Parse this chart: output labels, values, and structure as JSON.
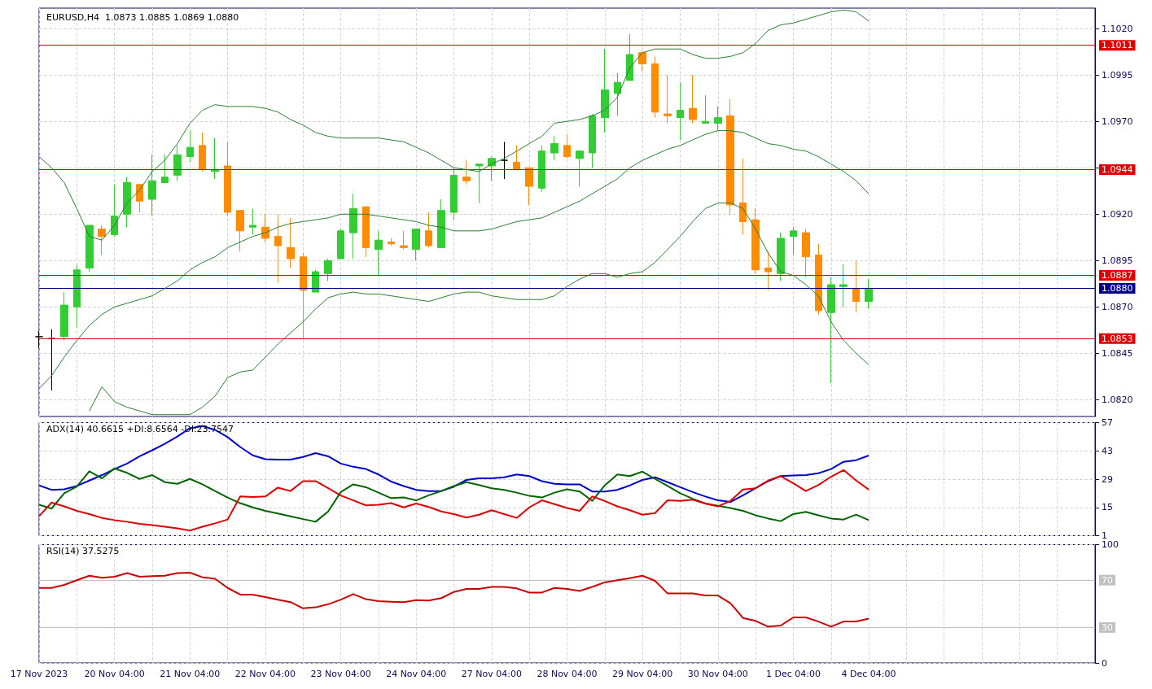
{
  "chart_data": [
    {
      "type": "candlestick",
      "title": "EURUSD,H4  1.0873 1.0885 1.0869 1.0880",
      "tick_labels": "y",
      "grid": true,
      "categories": [
        null,
        null,
        null,
        null,
        null,
        null,
        null,
        null,
        null,
        null,
        null,
        null,
        null,
        null,
        null,
        null,
        null,
        null,
        null,
        null,
        null,
        null,
        null,
        null,
        null,
        null,
        null,
        null,
        null,
        null,
        null,
        null,
        null,
        null,
        null,
        null,
        null,
        null,
        null,
        null,
        null,
        null,
        null,
        null,
        null,
        null,
        null,
        null,
        null,
        null,
        null,
        null,
        null,
        null,
        null,
        null,
        null,
        null,
        null,
        null,
        null,
        null,
        null,
        null,
        null,
        null,
        null
      ],
      "ylim": [
        1.0811,
        1.1031
      ],
      "yticks": [
        {
          "value": 1.082,
          "label": "1.0820"
        },
        {
          "value": 1.0845,
          "label": "1.0845"
        },
        {
          "value": 1.087,
          "label": "1.0870"
        },
        {
          "value": 1.0895,
          "label": "1.0895"
        },
        {
          "value": 1.092,
          "label": "1.0920"
        },
        {
          "value": 1.0945,
          "label": null
        },
        {
          "value": 1.097,
          "label": "1.0970"
        },
        {
          "value": 1.0995,
          "label": "1.0995"
        },
        {
          "value": 1.102,
          "label": "1.1020"
        }
      ],
      "ohlc": [
        [
          1.0854,
          1.0857,
          1.0848,
          1.0854
        ],
        [
          1.0853,
          1.0858,
          1.0825,
          1.0853
        ],
        [
          1.0854,
          1.0878,
          1.0852,
          1.0871
        ],
        [
          1.087,
          1.0893,
          1.0859,
          1.089
        ],
        [
          1.0891,
          1.0914,
          1.0889,
          1.0914
        ],
        [
          1.0912,
          1.0914,
          1.0898,
          1.0908
        ],
        [
          1.0909,
          1.0936,
          1.0908,
          1.0919
        ],
        [
          1.092,
          1.094,
          1.0913,
          1.0937
        ],
        [
          1.0936,
          1.0936,
          1.0921,
          1.0927
        ],
        [
          1.0928,
          1.0952,
          1.0919,
          1.0938
        ],
        [
          1.0937,
          1.0952,
          1.0937,
          1.094
        ],
        [
          1.0941,
          1.0957,
          1.0938,
          1.0952
        ],
        [
          1.0951,
          1.0965,
          1.0948,
          1.0956
        ],
        [
          1.0957,
          1.0964,
          1.0943,
          1.0944
        ],
        [
          1.0943,
          1.0961,
          1.0939,
          1.0944
        ],
        [
          1.0946,
          1.0959,
          1.0919,
          1.0921
        ],
        [
          1.0922,
          1.0922,
          1.09,
          1.0911
        ],
        [
          1.0913,
          1.0923,
          1.0909,
          1.0914
        ],
        [
          1.0913,
          1.092,
          1.0905,
          1.0907
        ],
        [
          1.0908,
          1.092,
          1.0883,
          1.0903
        ],
        [
          1.0902,
          1.0918,
          1.0891,
          1.0896
        ],
        [
          1.0897,
          1.0899,
          1.0853,
          1.0879
        ],
        [
          1.0878,
          1.089,
          1.0878,
          1.0889
        ],
        [
          1.0888,
          1.0896,
          1.0884,
          1.0895
        ],
        [
          1.0896,
          1.0912,
          1.0896,
          1.0911
        ],
        [
          1.091,
          1.0931,
          1.0896,
          1.0923
        ],
        [
          1.0924,
          1.0924,
          1.0897,
          1.0902
        ],
        [
          1.0901,
          1.0911,
          1.0887,
          1.0906
        ],
        [
          1.0905,
          1.0907,
          1.0903,
          1.0904
        ],
        [
          1.0903,
          1.0911,
          1.0901,
          1.0902
        ],
        [
          1.0901,
          1.0912,
          1.0895,
          1.0912
        ],
        [
          1.0911,
          1.0921,
          1.0902,
          1.0903
        ],
        [
          1.0902,
          1.0928,
          1.0902,
          1.0922
        ],
        [
          1.0921,
          1.0945,
          1.0917,
          1.0941
        ],
        [
          1.094,
          1.0949,
          1.0936,
          1.0938
        ],
        [
          1.0946,
          1.0947,
          1.0926,
          1.0947
        ],
        [
          1.0946,
          1.0951,
          1.0938,
          1.095
        ],
        [
          1.0949,
          1.0959,
          1.0939,
          1.0949
        ],
        [
          1.0948,
          1.0957,
          1.0944,
          1.0944
        ],
        [
          1.0945,
          1.0945,
          1.0925,
          1.0935
        ],
        [
          1.0934,
          1.0957,
          1.0932,
          1.0954
        ],
        [
          1.0953,
          1.0962,
          1.0949,
          1.0958
        ],
        [
          1.0957,
          1.0963,
          1.095,
          1.0951
        ],
        [
          1.095,
          1.0954,
          1.0935,
          1.0954
        ],
        [
          1.0953,
          1.0974,
          1.0945,
          1.0973
        ],
        [
          1.0972,
          1.1009,
          1.0964,
          1.0987
        ],
        [
          1.0985,
          1.0996,
          1.0973,
          1.0991
        ],
        [
          1.0992,
          1.1017,
          1.0992,
          1.1006
        ],
        [
          1.1007,
          1.1008,
          1.0997,
          1.1001
        ],
        [
          1.1001,
          1.1005,
          1.0972,
          1.0975
        ],
        [
          1.0974,
          1.0995,
          1.0969,
          1.0973
        ],
        [
          1.0972,
          1.0991,
          1.096,
          1.0976
        ],
        [
          1.0977,
          1.0995,
          1.0969,
          1.0971
        ],
        [
          1.0969,
          1.0984,
          1.0969,
          1.097
        ],
        [
          1.0969,
          1.0978,
          1.0965,
          1.0972
        ],
        [
          1.0973,
          1.0982,
          1.092,
          1.0925
        ],
        [
          1.0926,
          1.095,
          1.0909,
          1.0916
        ],
        [
          1.0917,
          1.0923,
          1.0888,
          1.089
        ],
        [
          1.0891,
          1.09,
          1.0879,
          1.0889
        ],
        [
          1.0888,
          1.091,
          1.0884,
          1.0907
        ],
        [
          1.0908,
          1.0913,
          1.0898,
          1.0911
        ],
        [
          1.091,
          1.0912,
          1.0886,
          1.0897
        ],
        [
          1.0898,
          1.0904,
          1.0866,
          1.0868
        ],
        [
          1.0867,
          1.0886,
          1.0829,
          1.0882
        ],
        [
          1.0881,
          1.0893,
          1.087,
          1.0882
        ],
        [
          1.088,
          1.0895,
          1.0867,
          1.0873
        ],
        [
          1.0873,
          1.0885,
          1.0869,
          1.088
        ]
      ],
      "colors": [
        "#000000",
        "#000000",
        "#32cd32",
        "#32cd32",
        "#32cd32",
        "#ff8c00",
        "#32cd32",
        "#32cd32",
        "#ff8c00",
        "#32cd32",
        "#32cd32",
        "#32cd32",
        "#32cd32",
        "#ff8c00",
        "#32cd32",
        "#ff8c00",
        "#ff8c00",
        "#32cd32",
        "#ff8c00",
        "#ff8c00",
        "#ff8c00",
        "#ff8c00",
        "#32cd32",
        "#32cd32",
        "#32cd32",
        "#32cd32",
        "#ff8c00",
        "#32cd32",
        "#ff8c00",
        "#ff8c00",
        "#32cd32",
        "#ff8c00",
        "#32cd32",
        "#32cd32",
        "#ff8c00",
        "#32cd32",
        "#32cd32",
        "#000000",
        "#ff8c00",
        "#ff8c00",
        "#32cd32",
        "#32cd32",
        "#ff8c00",
        "#32cd32",
        "#32cd32",
        "#32cd32",
        "#32cd32",
        "#32cd32",
        "#ff8c00",
        "#ff8c00",
        "#ff8c00",
        "#32cd32",
        "#ff8c00",
        "#32cd32",
        "#32cd32",
        "#ff8c00",
        "#ff8c00",
        "#ff8c00",
        "#ff8c00",
        "#32cd32",
        "#32cd32",
        "#ff8c00",
        "#ff8c00",
        "#32cd32",
        "#32cd32",
        "#ff8c00",
        "#32cd32"
      ],
      "series": [
        {
          "type": "line",
          "color": "#2e7d32",
          "values": [
            1.0951,
            1.0945,
            1.0937,
            1.0923,
            1.0908,
            1.0906,
            1.0914,
            1.0926,
            1.0933,
            1.0943,
            1.0949,
            1.0958,
            1.0969,
            1.0976,
            1.0979,
            1.0978,
            1.0978,
            1.0978,
            1.0977,
            1.0975,
            1.0971,
            1.0968,
            1.0964,
            1.0962,
            1.0961,
            1.0961,
            1.0961,
            1.0961,
            1.096,
            1.0959,
            1.0956,
            1.0953,
            1.0949,
            1.0945,
            1.0944,
            1.0943,
            1.0947,
            1.095,
            1.0954,
            1.0958,
            1.0962,
            1.0969,
            1.097,
            1.0971,
            1.0973,
            1.0976,
            1.0983,
            1.0999,
            1.1007,
            1.1009,
            1.1009,
            1.1009,
            1.1006,
            1.1004,
            1.1004,
            1.1005,
            1.1007,
            1.1012,
            1.1019,
            1.1022,
            1.1023,
            1.1025,
            1.1027,
            1.1029,
            1.103,
            1.1029,
            1.1024
          ]
        },
        {
          "type": "line",
          "color": "#2e7d32",
          "values": [
            1.0826,
            1.0833,
            1.0843,
            1.0852,
            1.086,
            1.0866,
            1.087,
            1.0872,
            1.0874,
            1.0876,
            1.088,
            1.0884,
            1.089,
            1.0894,
            1.0897,
            1.0902,
            1.0905,
            1.0908,
            1.091,
            1.0913,
            1.0915,
            1.0916,
            1.0917,
            1.0918,
            1.092,
            1.092,
            1.092,
            1.0919,
            1.0918,
            1.0917,
            1.0916,
            1.0914,
            1.0913,
            1.0911,
            1.0911,
            1.0911,
            1.0912,
            1.0914,
            1.0916,
            1.0917,
            1.0918,
            1.0921,
            1.0924,
            1.0927,
            1.0931,
            1.0935,
            1.0939,
            1.0945,
            1.0949,
            1.0952,
            1.0955,
            1.0957,
            1.096,
            1.0963,
            1.0965,
            1.0965,
            1.0964,
            1.0961,
            1.0958,
            1.0957,
            1.0955,
            1.0954,
            1.0951,
            1.0947,
            1.0943,
            1.0938,
            1.0931
          ]
        },
        {
          "type": "line",
          "color": "#2e7d32",
          "values": [
            null,
            null,
            null,
            null,
            1.0814,
            1.0827,
            1.0819,
            1.0816,
            1.0814,
            1.0812,
            1.0812,
            1.0812,
            1.0812,
            1.0816,
            1.0822,
            1.0832,
            1.0835,
            1.0836,
            1.0843,
            1.085,
            1.0856,
            1.0862,
            1.0869,
            1.0875,
            1.0877,
            1.0878,
            1.0877,
            1.0877,
            1.0876,
            1.0875,
            1.0874,
            1.0873,
            1.0875,
            1.0877,
            1.0878,
            1.0878,
            1.0876,
            1.0875,
            1.0874,
            1.0874,
            1.0874,
            1.0876,
            1.0881,
            1.0885,
            1.0888,
            1.0888,
            1.0886,
            1.0888,
            1.0889,
            1.0894,
            1.0901,
            1.0908,
            1.0916,
            1.0923,
            1.0926,
            1.0926,
            1.0923,
            1.0912,
            1.0899,
            1.0889,
            1.0887,
            1.0882,
            1.0876,
            1.0862,
            1.0852,
            1.0845,
            1.0839
          ]
        }
      ],
      "ref_lines": [
        {
          "axis": "y",
          "value": 1.1011,
          "label": "1.1011",
          "color": "#e00000"
        },
        {
          "axis": "y",
          "value": 1.0944,
          "label": "1.0944",
          "color": "#e00000"
        },
        {
          "axis": "y",
          "value": 1.0887,
          "label": "1.0887",
          "color": "#e00000"
        },
        {
          "axis": "y",
          "value": 1.088,
          "label": "1.0880",
          "color": "#000080"
        },
        {
          "axis": "y",
          "value": 1.0853,
          "label": "1.0853",
          "color": "#e00000"
        }
      ]
    },
    {
      "type": "line",
      "title": "ADX(14) 40.6615 +DI:8.6564 -DI:23.7547",
      "tick_labels": "y",
      "grid": true,
      "categories": [
        null,
        null,
        null,
        null,
        null,
        null,
        null,
        null,
        null,
        null,
        null,
        null,
        null,
        null,
        null,
        null,
        null,
        null,
        null,
        null,
        null,
        null,
        null,
        null,
        null,
        null,
        null,
        null,
        null,
        null,
        null,
        null,
        null,
        null,
        null,
        null,
        null,
        null,
        null,
        null,
        null,
        null,
        null,
        null,
        null,
        null,
        null,
        null,
        null,
        null,
        null,
        null,
        null,
        null,
        null,
        null,
        null,
        null,
        null,
        null,
        null,
        null,
        null,
        null,
        null,
        null,
        null
      ],
      "ylim": [
        1,
        57
      ],
      "yticks": [
        1,
        15,
        29,
        43,
        57
      ],
      "series": [
        {
          "color": "#0000cd",
          "values": [
            25.9,
            23.7,
            24.0,
            25.6,
            28.3,
            31.0,
            34.0,
            36.7,
            40.3,
            43.3,
            46.5,
            50.1,
            54.2,
            55.3,
            53.4,
            49.8,
            44.9,
            40.8,
            38.9,
            38.7,
            38.7,
            40.0,
            41.9,
            40.3,
            36.7,
            35.1,
            34.0,
            31.3,
            27.8,
            25.6,
            23.7,
            23.1,
            23.1,
            25.3,
            28.6,
            29.4,
            29.4,
            29.9,
            31.3,
            30.5,
            28.0,
            26.7,
            26.4,
            26.4,
            22.9,
            22.9,
            23.7,
            25.9,
            28.6,
            29.9,
            27.5,
            25.0,
            22.6,
            20.4,
            18.5,
            17.7,
            21.0,
            24.5,
            28.0,
            30.5,
            30.8,
            31.0,
            31.9,
            34.0,
            37.6,
            38.4,
            40.7
          ]
        },
        {
          "color": "#006400",
          "values": [
            16.3,
            14.4,
            22.0,
            25.3,
            32.9,
            29.4,
            34.3,
            32.1,
            29.1,
            31.0,
            27.5,
            26.7,
            29.1,
            26.4,
            23.1,
            19.9,
            17.1,
            15.0,
            13.3,
            12.0,
            10.6,
            9.2,
            7.9,
            13.0,
            22.6,
            26.4,
            25.0,
            22.3,
            19.6,
            19.9,
            18.5,
            21.0,
            23.1,
            25.6,
            27.5,
            26.1,
            24.5,
            23.7,
            22.3,
            20.7,
            19.9,
            22.3,
            24.0,
            22.9,
            18.2,
            25.9,
            31.3,
            30.5,
            32.7,
            29.1,
            25.6,
            22.0,
            19.3,
            16.9,
            15.8,
            14.7,
            13.3,
            11.1,
            9.5,
            8.2,
            11.7,
            12.8,
            11.1,
            9.5,
            9.0,
            11.4,
            8.7
          ]
        },
        {
          "color": "#dc0000",
          "values": [
            10.6,
            17.4,
            15.5,
            13.3,
            11.7,
            9.8,
            8.7,
            7.9,
            6.8,
            6.2,
            5.4,
            4.6,
            3.5,
            5.4,
            7.1,
            9.0,
            20.4,
            20.1,
            20.4,
            24.8,
            23.1,
            28.0,
            28.0,
            24.5,
            20.9,
            18.5,
            16.0,
            16.3,
            17.1,
            15.0,
            16.9,
            15.2,
            13.0,
            11.7,
            10.0,
            11.4,
            13.6,
            11.7,
            9.8,
            15.0,
            18.5,
            16.6,
            14.7,
            13.3,
            20.4,
            18.2,
            15.5,
            13.6,
            11.4,
            12.2,
            18.5,
            18.2,
            18.8,
            16.9,
            15.5,
            18.2,
            23.9,
            24.5,
            28.3,
            30.5,
            26.9,
            23.1,
            26.1,
            30.2,
            33.5,
            28.3,
            23.8
          ]
        }
      ]
    },
    {
      "type": "line",
      "title": "RSI(14) 37.5275",
      "grid": true,
      "categories": [
        "17 Nov 2023",
        null,
        null,
        null,
        null,
        null,
        "20 Nov 04:00",
        null,
        null,
        null,
        null,
        null,
        "21 Nov 04:00",
        null,
        null,
        null,
        null,
        null,
        "22 Nov 04:00",
        null,
        null,
        null,
        null,
        null,
        "23 Nov 04:00",
        null,
        null,
        null,
        null,
        null,
        "24 Nov 04:00",
        null,
        null,
        null,
        null,
        null,
        "27 Nov 04:00",
        null,
        null,
        null,
        null,
        null,
        "28 Nov 04:00",
        null,
        null,
        null,
        null,
        null,
        "29 Nov 04:00",
        null,
        null,
        null,
        null,
        null,
        "30 Nov 04:00",
        null,
        null,
        null,
        null,
        null,
        "1 Dec 04:00",
        null,
        null,
        null,
        null,
        null,
        "4 Dec 04:00"
      ],
      "ylim": [
        0,
        100
      ],
      "yticks": [
        0,
        100
      ],
      "series": [
        {
          "color": "#cc0000",
          "values": [
            63.4,
            63.4,
            66.0,
            69.9,
            73.7,
            72.0,
            72.9,
            75.9,
            72.9,
            73.3,
            73.7,
            75.9,
            76.3,
            72.4,
            71.1,
            63.4,
            57.8,
            57.8,
            55.7,
            53.5,
            51.4,
            46.2,
            47.0,
            49.6,
            53.5,
            58.2,
            53.9,
            52.2,
            51.8,
            51.4,
            53.1,
            52.7,
            54.8,
            60.0,
            62.5,
            62.5,
            64.3,
            64.3,
            63.0,
            59.5,
            59.5,
            63.4,
            62.5,
            60.8,
            64.3,
            68.1,
            69.9,
            71.6,
            73.7,
            69.4,
            58.7,
            58.7,
            58.7,
            57.0,
            57.0,
            50.5,
            38.0,
            35.5,
            30.7,
            31.6,
            38.5,
            38.5,
            35.0,
            30.7,
            35.0,
            35.0,
            37.5
          ]
        }
      ],
      "ref_lines": [
        {
          "axis": "y",
          "value": 70,
          "label": "70",
          "color": "#c0c0c0"
        },
        {
          "axis": "y",
          "value": 30,
          "label": "30",
          "color": "#c0c0c0"
        }
      ]
    }
  ]
}
